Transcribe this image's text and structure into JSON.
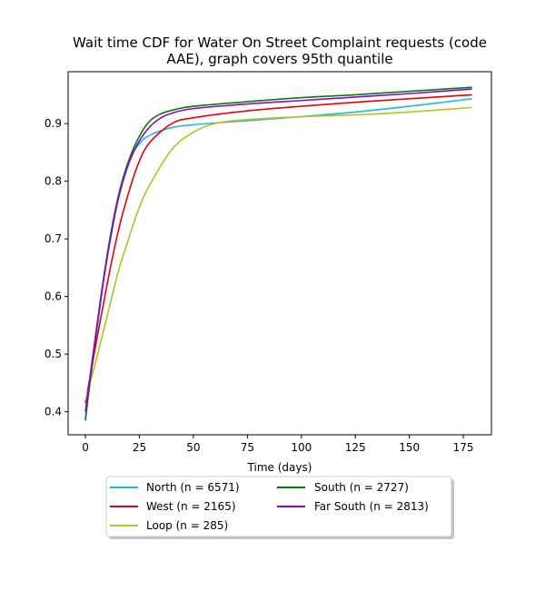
{
  "chart_data": {
    "type": "line",
    "title_line1": "Wait time CDF for Water On Street Complaint  requests (code",
    "title_line2": "AAE), graph covers 95th quantile",
    "xlabel": "Time (days)",
    "ylabel": "",
    "xlim": [
      -8,
      188
    ],
    "ylim": [
      0.36,
      0.99
    ],
    "xticks": [
      0,
      25,
      50,
      75,
      100,
      125,
      150,
      175
    ],
    "yticks": [
      0.4,
      0.5,
      0.6,
      0.7,
      0.8,
      0.9
    ],
    "xtick_labels": [
      "0",
      "25",
      "50",
      "75",
      "100",
      "125",
      "150",
      "175"
    ],
    "ytick_labels": [
      "0.4",
      "0.5",
      "0.6",
      "0.7",
      "0.8",
      "0.9"
    ],
    "grid": false,
    "legend_position": "below",
    "series": [
      {
        "name": "North (n = 6571)",
        "color": "#17becf",
        "x": [
          0,
          5,
          10,
          15,
          20,
          25,
          30,
          40,
          50,
          75,
          100,
          125,
          150,
          179
        ],
        "y": [
          0.39,
          0.53,
          0.67,
          0.77,
          0.835,
          0.865,
          0.88,
          0.893,
          0.898,
          0.905,
          0.912,
          0.92,
          0.93,
          0.943
        ]
      },
      {
        "name": "West (n = 2165)",
        "color": "#e8000b",
        "x": [
          0,
          5,
          10,
          15,
          20,
          25,
          30,
          40,
          50,
          75,
          100,
          125,
          150,
          179
        ],
        "y": [
          0.415,
          0.52,
          0.62,
          0.71,
          0.78,
          0.835,
          0.868,
          0.9,
          0.91,
          0.922,
          0.93,
          0.937,
          0.943,
          0.95
        ]
      },
      {
        "name": "Loop (n = 285)",
        "color": "#bcbd22",
        "x": [
          0,
          5,
          10,
          15,
          20,
          25,
          30,
          40,
          50,
          60,
          75,
          100,
          125,
          150,
          179
        ],
        "y": [
          0.42,
          0.49,
          0.565,
          0.64,
          0.7,
          0.755,
          0.795,
          0.855,
          0.885,
          0.9,
          0.907,
          0.912,
          0.915,
          0.92,
          0.928
        ]
      },
      {
        "name": "South (n = 2727)",
        "color": "#008000",
        "x": [
          0,
          5,
          10,
          15,
          20,
          25,
          30,
          35,
          40,
          50,
          75,
          100,
          125,
          150,
          179
        ],
        "y": [
          0.385,
          0.54,
          0.67,
          0.77,
          0.835,
          0.878,
          0.905,
          0.917,
          0.923,
          0.93,
          0.938,
          0.945,
          0.95,
          0.956,
          0.963
        ]
      },
      {
        "name": "Far South (n = 2813)",
        "color": "#9400d3",
        "x": [
          0,
          5,
          10,
          15,
          20,
          25,
          30,
          35,
          40,
          50,
          75,
          100,
          125,
          150,
          179
        ],
        "y": [
          0.4,
          0.54,
          0.665,
          0.765,
          0.83,
          0.87,
          0.895,
          0.91,
          0.918,
          0.926,
          0.934,
          0.94,
          0.946,
          0.952,
          0.96
        ]
      }
    ]
  }
}
